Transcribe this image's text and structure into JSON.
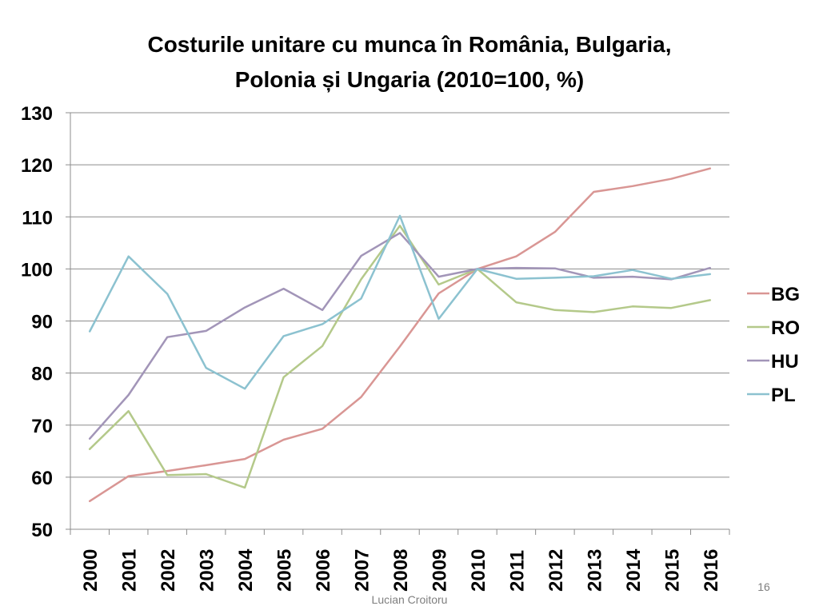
{
  "slide": {
    "title_line1": "Costurile unitare cu munca în România, Bulgaria,",
    "title_line2": "Polonia și Ungaria  (2010=100, %)",
    "author": "Lucian Croitoru",
    "slide_number": "16"
  },
  "chart_data": {
    "type": "line",
    "title": "Costurile unitare cu munca în România, Bulgaria, Polonia și Ungaria  (2010=100, %)",
    "xlabel": "",
    "ylabel": "",
    "ylim": [
      50,
      130
    ],
    "yticks": [
      50,
      60,
      70,
      80,
      90,
      100,
      110,
      120,
      130
    ],
    "grid": true,
    "legend_position": "right",
    "categories": [
      "2000",
      "2001",
      "2002",
      "2003",
      "2004",
      "2005",
      "2006",
      "2007",
      "2008",
      "2009",
      "2010",
      "2011",
      "2012",
      "2013",
      "2014",
      "2015",
      "2016"
    ],
    "series": [
      {
        "name": "BG",
        "color": "#d99694",
        "values": [
          55.4,
          60.2,
          61.2,
          62.3,
          63.5,
          67.2,
          69.3,
          75.4,
          85.1,
          95.3,
          100.0,
          102.4,
          107.1,
          114.8,
          115.9,
          117.3,
          119.3
        ]
      },
      {
        "name": "RO",
        "color": "#b4c98a",
        "values": [
          65.4,
          72.7,
          60.4,
          60.6,
          58.0,
          79.2,
          85.2,
          98.0,
          108.3,
          97.0,
          100.0,
          93.6,
          92.1,
          91.7,
          92.8,
          92.5,
          94.0
        ]
      },
      {
        "name": "HU",
        "color": "#a295b8",
        "values": [
          67.4,
          75.8,
          86.9,
          88.1,
          92.6,
          96.2,
          92.1,
          102.5,
          106.9,
          98.5,
          100.0,
          100.2,
          100.1,
          98.3,
          98.5,
          98.0,
          100.2
        ]
      },
      {
        "name": "PL",
        "color": "#8cc2d0",
        "values": [
          88.0,
          102.4,
          95.2,
          81.0,
          77.0,
          87.1,
          89.4,
          94.3,
          110.2,
          90.4,
          100.0,
          98.1,
          98.3,
          98.6,
          99.8,
          98.1,
          99.0
        ]
      }
    ]
  }
}
